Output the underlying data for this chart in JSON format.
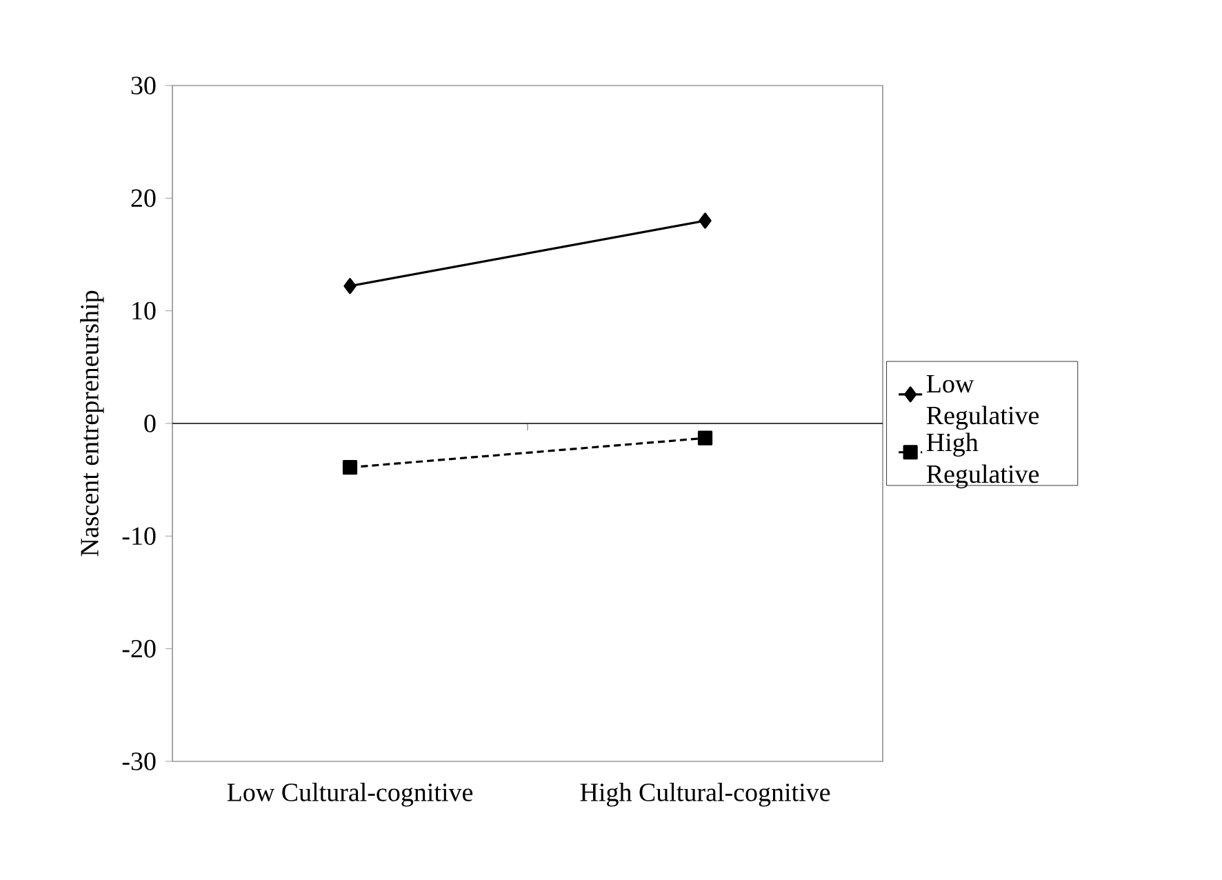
{
  "chart_data": {
    "type": "line",
    "ylabel": "Nascent entrepreneurship",
    "categories": [
      "Low Cultural-cognitive",
      "High Cultural-cognitive"
    ],
    "series": [
      {
        "name": "Low Regulative",
        "color": "#000000",
        "values": [
          12.2,
          18.0
        ],
        "marker": "diamond",
        "line_style": "solid"
      },
      {
        "name": "High Regulative",
        "color": "#000000",
        "values": [
          -3.9,
          -1.3
        ],
        "marker": "square",
        "line_style": "dashed"
      }
    ],
    "ref_lines": [
      {
        "axis": "y",
        "value": 0,
        "color": "#000000",
        "line_style": "solid"
      }
    ],
    "ylim": [
      -30,
      30
    ],
    "yticks": [
      -30,
      -20,
      -10,
      0,
      10,
      20,
      30
    ],
    "legend": "right",
    "grid": false
  }
}
